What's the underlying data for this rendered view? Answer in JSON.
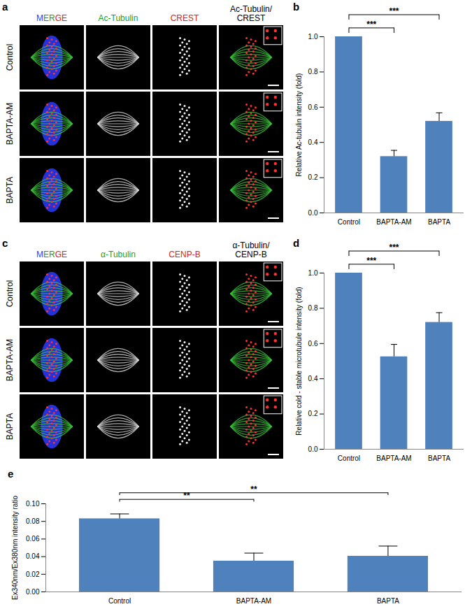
{
  "image_panels": [
    {
      "panel": "a",
      "columns": [
        "MERGE",
        "Ac-Tubulin",
        "CREST",
        "Ac-Tubulin/\nCREST"
      ],
      "rows": [
        "Control",
        "BAPTA-AM",
        "BAPTA"
      ]
    },
    {
      "panel": "c",
      "columns": [
        "MERGE",
        "α-Tubulin",
        "CENP-B",
        "α-Tubulin/\nCENP-B"
      ],
      "rows": [
        "Control",
        "BAPTA-AM",
        "BAPTA"
      ]
    }
  ],
  "chart_data": [
    {
      "panel": "b",
      "type": "bar",
      "categories": [
        "Control",
        "BAPTA-AM",
        "BAPTA"
      ],
      "values": [
        1.0,
        0.32,
        0.52
      ],
      "errors": [
        0.004,
        0.035,
        0.048
      ],
      "ylabel": "Relative Ac-tubulin intensity (fold)",
      "ylim": [
        0,
        1
      ],
      "yticks": [
        {
          "value": 0,
          "label": "0.0"
        },
        0.2,
        0.4,
        0.6,
        0.8,
        {
          "value": 1,
          "label": "1.0"
        }
      ],
      "color": "#4f81bd",
      "annotations": [
        {
          "from": "Control",
          "to": "BAPTA-AM",
          "text": "***"
        },
        {
          "from": "Control",
          "to": "BAPTA",
          "text": "***"
        }
      ]
    },
    {
      "panel": "d",
      "type": "bar",
      "categories": [
        "Control",
        "BAPTA-AM",
        "BAPTA"
      ],
      "values": [
        1.0,
        0.525,
        0.72
      ],
      "errors": [
        0.004,
        0.07,
        0.055
      ],
      "ylabel": "Relative cold - stable microtubule intensity (fold)",
      "ylim": [
        0,
        1
      ],
      "yticks": [
        {
          "value": 0,
          "label": "0.0"
        },
        0.2,
        0.4,
        0.6,
        0.8,
        {
          "value": 1,
          "label": "1.0"
        }
      ],
      "color": "#4f81bd",
      "annotations": [
        {
          "from": "Control",
          "to": "BAPTA-AM",
          "text": "***"
        },
        {
          "from": "Control",
          "to": "BAPTA",
          "text": "***"
        }
      ]
    },
    {
      "panel": "e",
      "type": "bar",
      "categories": [
        "Control",
        "BAPTA-AM",
        "BAPTA"
      ],
      "values": [
        0.083,
        0.035,
        0.0405
      ],
      "errors": [
        0.0055,
        0.009,
        0.0115
      ],
      "ylabel": "Ex340nm/Ex380nm intensity ratio",
      "ylim": [
        0,
        0.1
      ],
      "yticks": [
        {
          "value": 0,
          "label": "0.00"
        },
        0.02,
        0.04,
        0.06,
        0.08,
        {
          "value": 0.1,
          "label": "0.10"
        }
      ],
      "color": "#4f81bd",
      "annotations": [
        {
          "from": "Control",
          "to": "BAPTA-AM",
          "text": "**"
        },
        {
          "from": "Control",
          "to": "BAPTA",
          "text": "**"
        }
      ]
    }
  ]
}
